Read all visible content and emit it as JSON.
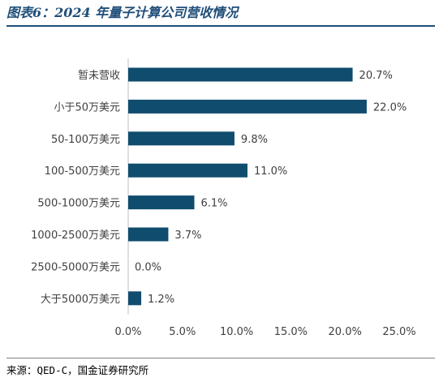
{
  "figure": {
    "title": "图表6：2024 年量子计算公司营收情况",
    "source": "来源：QED-C，国金证券研究所"
  },
  "chart_data": {
    "type": "bar",
    "orientation": "horizontal",
    "categories": [
      "暂未营收",
      "小于50万美元",
      "50-100万美元",
      "100-500万美元",
      "500-1000万美元",
      "1000-2500万美元",
      "2500-5000万美元",
      "大于5000万美元"
    ],
    "values": [
      20.7,
      22.0,
      9.8,
      11.0,
      6.1,
      3.7,
      0.0,
      1.2
    ],
    "value_labels": [
      "20.7%",
      "22.0%",
      "9.8%",
      "11.0%",
      "6.1%",
      "3.7%",
      "0.0%",
      "1.2%"
    ],
    "xlim": [
      0,
      25
    ],
    "xticks": [
      0,
      5,
      10,
      15,
      20,
      25
    ],
    "xtick_labels": [
      "0.0%",
      "5.0%",
      "10.0%",
      "15.0%",
      "20.0%",
      "25.0%"
    ],
    "bar_color": "#0f4c6e",
    "grid": false,
    "legend": "none"
  }
}
